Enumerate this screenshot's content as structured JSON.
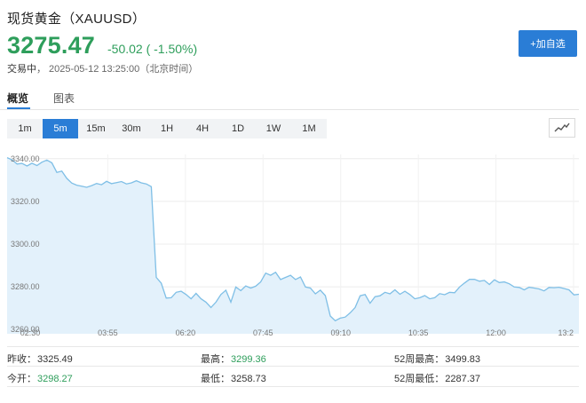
{
  "header": {
    "title": "现货黄金（XAUUSD）",
    "price": "3275.47",
    "change": "-50.02 ( -1.50%)",
    "status": "交易中",
    "timestamp": "， 2025-05-12 13:25:00（北京时间）",
    "add_button": "+加自选",
    "price_color": "#2e9e5b",
    "accent_color": "#2a7dd6"
  },
  "tabs": [
    {
      "label": "概览",
      "active": true
    },
    {
      "label": "图表",
      "active": false
    }
  ],
  "ranges": [
    {
      "label": "1m",
      "active": false
    },
    {
      "label": "5m",
      "active": true
    },
    {
      "label": "15m",
      "active": false
    },
    {
      "label": "30m",
      "active": false
    },
    {
      "label": "1H",
      "active": false
    },
    {
      "label": "4H",
      "active": false
    },
    {
      "label": "1D",
      "active": false
    },
    {
      "label": "1W",
      "active": false
    },
    {
      "label": "1M",
      "active": false
    }
  ],
  "chart_type_icon": "line-chart-icon",
  "chart_data": {
    "type": "area",
    "title": "",
    "xlabel": "",
    "ylabel": "",
    "y_ticks": [
      "3340.00",
      "3320.00",
      "3300.00",
      "3280.00",
      "3260.00"
    ],
    "x_ticks": [
      "02:30",
      "03:55",
      "06:20",
      "07:45",
      "09:10",
      "10:35",
      "12:00",
      "13:2"
    ],
    "ylim": [
      3258,
      3342
    ],
    "grid": true,
    "line_color": "#7fbfe6",
    "fill_color": "#e3f1fb",
    "values": [
      3340.5,
      3339.5,
      3337.5,
      3337.8,
      3336.6,
      3337.9,
      3336.8,
      3338.4,
      3339.4,
      3338.1,
      3333.6,
      3334.2,
      3330.8,
      3328.6,
      3327.6,
      3327.1,
      3326.6,
      3327.4,
      3328.4,
      3327.8,
      3329.4,
      3328.3,
      3328.8,
      3329.3,
      3328.2,
      3328.7,
      3329.7,
      3328.7,
      3328.2,
      3326.9,
      3284.4,
      3281.7,
      3274.7,
      3274.9,
      3277.4,
      3277.9,
      3276.4,
      3274.4,
      3276.9,
      3274.4,
      3272.8,
      3270.3,
      3272.8,
      3276.4,
      3278.4,
      3272.8,
      3279.9,
      3278.2,
      3280.4,
      3279.4,
      3280.3,
      3282.3,
      3286.4,
      3285.4,
      3286.8,
      3283.4,
      3284.4,
      3285.4,
      3283.4,
      3284.6,
      3279.9,
      3279.4,
      3276.7,
      3278.4,
      3275.9,
      3266.3,
      3264.1,
      3265.3,
      3265.8,
      3267.8,
      3270.3,
      3275.8,
      3276.4,
      3272.3,
      3275.4,
      3275.8,
      3277.4,
      3276.7,
      3278.6,
      3276.5,
      3277.9,
      3276.4,
      3274.4,
      3274.9,
      3275.9,
      3274.4,
      3274.9,
      3276.8,
      3276.3,
      3277.4,
      3277.2,
      3279.9,
      3281.8,
      3283.5,
      3283.5,
      3282.6,
      3283.0,
      3281.1,
      3283.3,
      3282.0,
      3282.3,
      3281.4,
      3279.9,
      3279.7,
      3278.6,
      3279.8,
      3279.4,
      3279.0,
      3278.1,
      3279.7,
      3279.6,
      3279.8,
      3279.2,
      3278.6,
      3276.2,
      3276.5
    ]
  },
  "stats": [
    [
      {
        "label": "昨收：",
        "value": "3325.49",
        "tone": "dark"
      },
      {
        "label": "最高：",
        "value": "3299.36",
        "tone": "green"
      },
      {
        "label": "52周最高：",
        "value": "3499.83",
        "tone": "dark"
      }
    ],
    [
      {
        "label": "今开：",
        "value": "3298.27",
        "tone": "green"
      },
      {
        "label": "最低：",
        "value": "3258.73",
        "tone": "dark"
      },
      {
        "label": "52周最低：",
        "value": "2287.37",
        "tone": "dark"
      }
    ]
  ]
}
